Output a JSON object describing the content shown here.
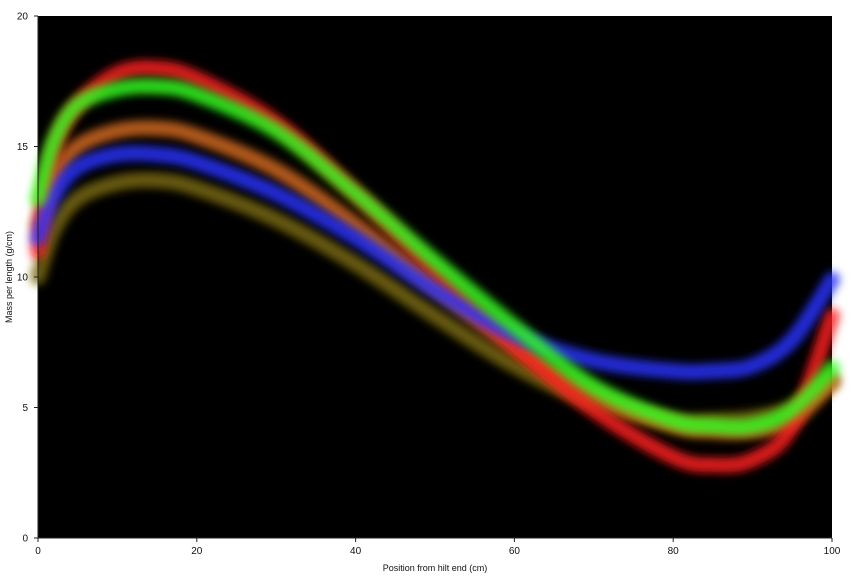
{
  "chart_data": {
    "type": "line",
    "title": "",
    "xlabel": "Position from hilt end (cm)",
    "ylabel": "Mass per length (g/cm)",
    "xlim": [
      0,
      100
    ],
    "ylim": [
      0,
      20
    ],
    "xticks": [
      0,
      20,
      40,
      60,
      80,
      100
    ],
    "yticks": [
      0,
      5,
      10,
      15,
      20
    ],
    "grid": false,
    "background": "#000000",
    "x": [
      0,
      2,
      5,
      10,
      15,
      20,
      30,
      40,
      50,
      60,
      70,
      80,
      85,
      90,
      95,
      100
    ],
    "series": [
      {
        "name": "red",
        "color": "#ff2020",
        "values": [
          11.0,
          14.8,
          16.6,
          17.8,
          18.0,
          17.6,
          15.9,
          13.2,
          10.2,
          7.4,
          4.9,
          3.1,
          2.8,
          3.0,
          4.3,
          8.5
        ]
      },
      {
        "name": "green",
        "color": "#33ff22",
        "values": [
          13.0,
          15.2,
          16.6,
          17.2,
          17.3,
          17.0,
          15.6,
          13.2,
          10.6,
          8.1,
          5.8,
          4.5,
          4.3,
          4.3,
          4.9,
          6.5
        ]
      },
      {
        "name": "orange",
        "color": "#d46a1e",
        "values": [
          12.0,
          13.8,
          15.0,
          15.6,
          15.7,
          15.4,
          14.1,
          12.0,
          9.6,
          7.3,
          5.5,
          4.3,
          4.1,
          4.1,
          4.5,
          6.0
        ]
      },
      {
        "name": "blue",
        "color": "#2a33ff",
        "values": [
          11.5,
          13.1,
          14.2,
          14.7,
          14.7,
          14.4,
          13.2,
          11.5,
          9.5,
          7.8,
          6.8,
          6.4,
          6.4,
          6.6,
          7.6,
          9.9
        ]
      },
      {
        "name": "olive",
        "color": "#7a6a12",
        "values": [
          10.0,
          11.8,
          13.0,
          13.6,
          13.7,
          13.4,
          12.2,
          10.5,
          8.5,
          6.6,
          5.2,
          4.5,
          4.5,
          4.6,
          5.0,
          6.0
        ]
      }
    ]
  }
}
